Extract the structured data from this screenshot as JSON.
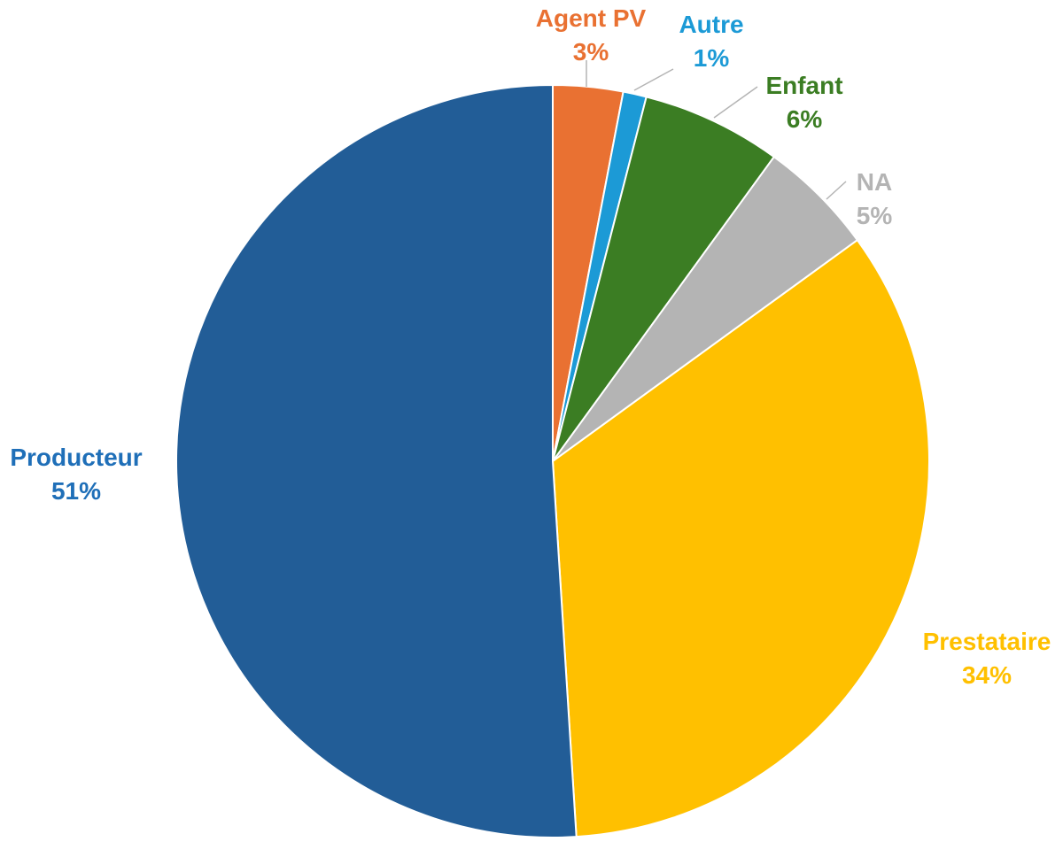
{
  "chart_data": {
    "type": "pie",
    "title": "",
    "unit": "%",
    "start_angle_deg": 0,
    "direction": "clockwise",
    "slices": [
      {
        "name": "Agent PV",
        "value": 3,
        "label": "3%",
        "color": "#E97132"
      },
      {
        "name": "Autre",
        "value": 1,
        "label": "1%",
        "color": "#1C9AD6"
      },
      {
        "name": "Enfant",
        "value": 6,
        "label": "6%",
        "color": "#3B7D23"
      },
      {
        "name": "NA",
        "value": 5,
        "label": "5%",
        "color": "#B4B4B4"
      },
      {
        "name": "Prestataire",
        "value": 34,
        "label": "34%",
        "color": "#FFC000"
      },
      {
        "name": "Producteur",
        "value": 51,
        "label": "51%",
        "color": "#225D97"
      }
    ],
    "label_text_colors": {
      "Agent PV": "#E97132",
      "Autre": "#1C9AD6",
      "Enfant": "#3B7D23",
      "NA": "#B4B4B4",
      "Prestataire": "#FFC000",
      "Producteur": "#1F6FB8"
    },
    "leader_line_color": "#B4B4B4",
    "outside_labels_with_leaders": [
      "Agent PV",
      "Autre",
      "Enfant",
      "NA"
    ]
  }
}
